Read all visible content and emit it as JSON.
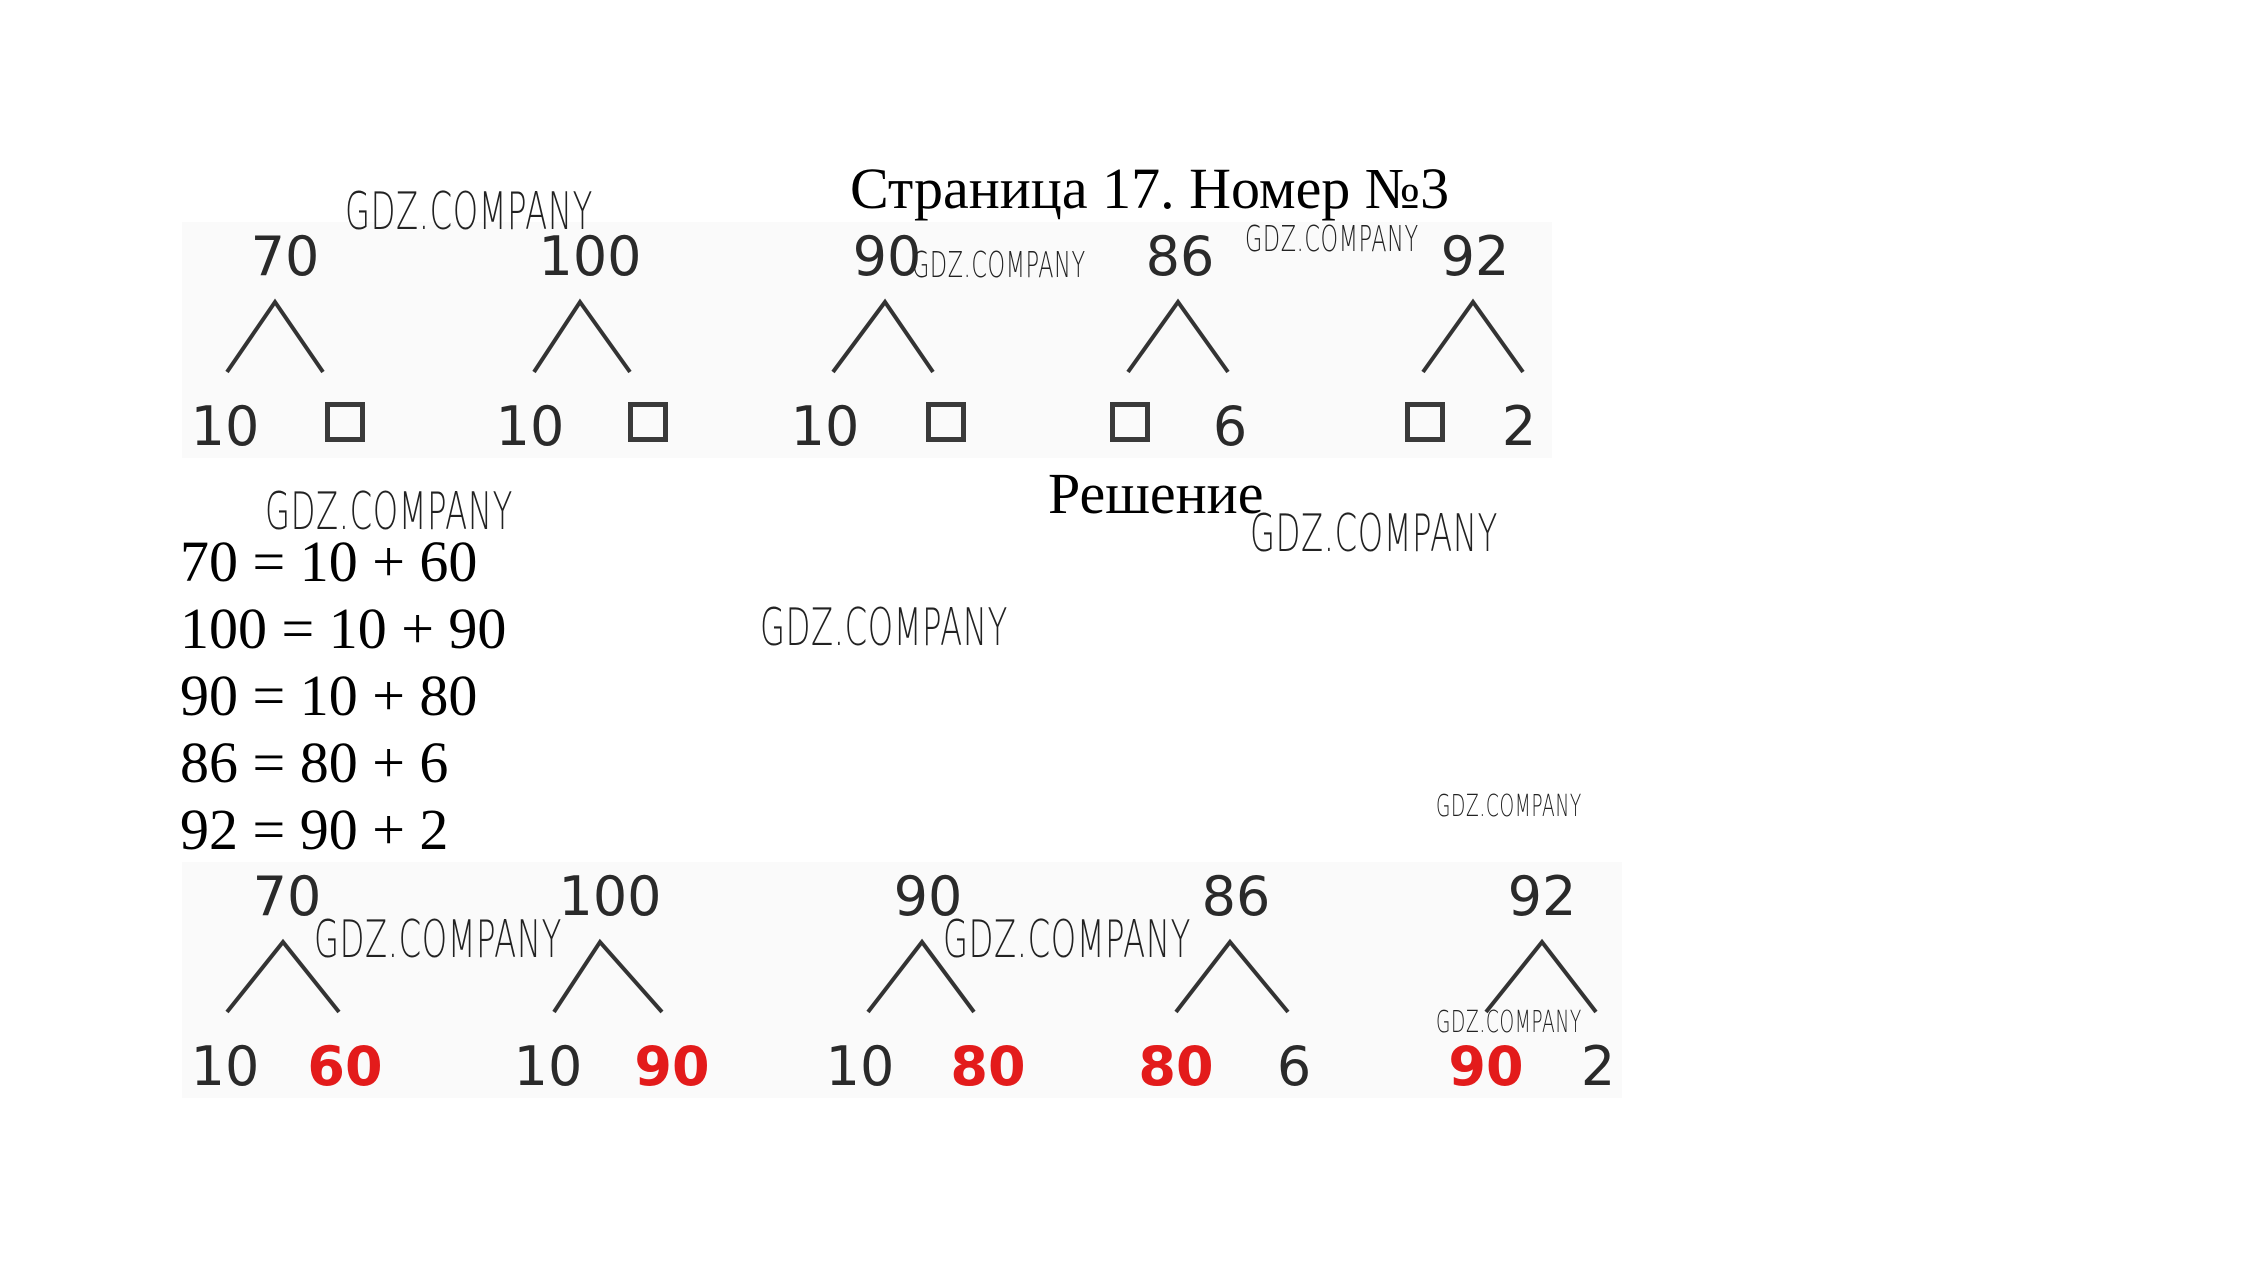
{
  "title": "Страница 17. Номер №3",
  "subtitle": "Решение",
  "task_trees": [
    {
      "top": "70",
      "left": "10",
      "right": ""
    },
    {
      "top": "100",
      "left": "10",
      "right": ""
    },
    {
      "top": "90",
      "left": "10",
      "right": ""
    },
    {
      "top": "86",
      "left": "",
      "right": "6"
    },
    {
      "top": "92",
      "left": "",
      "right": "2"
    }
  ],
  "equations": [
    "70 = 10 + 60",
    "100 = 10 + 90",
    "90 = 10 + 80",
    "86 = 80 + 6",
    "92 = 90 + 2"
  ],
  "answer_trees": [
    {
      "top": "70",
      "left": "10",
      "right": "60",
      "answer_side": "right"
    },
    {
      "top": "100",
      "left": "10",
      "right": "90",
      "answer_side": "right"
    },
    {
      "top": "90",
      "left": "10",
      "right": "80",
      "answer_side": "right"
    },
    {
      "top": "86",
      "left": "80",
      "right": "6",
      "answer_side": "left"
    },
    {
      "top": "92",
      "left": "90",
      "right": "2",
      "answer_side": "left"
    }
  ],
  "colors": {
    "answer": "#e31b1b",
    "text": "#2a2a2a"
  },
  "watermark": "GDZ.COMPANY"
}
